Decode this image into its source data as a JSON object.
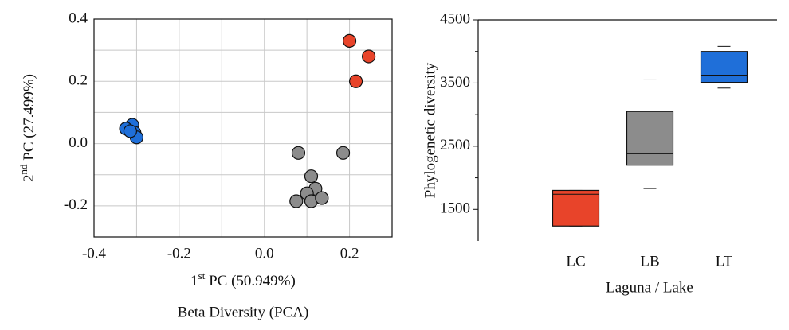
{
  "chart_data": [
    {
      "type": "scatter",
      "title": "Beta Diversity (PCA)",
      "xlabel": {
        "base": "1",
        "sup": "st",
        "rest": " PC (50.949%)"
      },
      "ylabel": {
        "base": "2",
        "sup": "nd",
        "rest": " PC (27.499%)"
      },
      "xlim": [
        -0.4,
        0.3
      ],
      "ylim": [
        -0.3,
        0.4
      ],
      "xticks": [
        -0.4,
        -0.2,
        {
          "value": 0,
          "label": "0.0"
        },
        0.2
      ],
      "yticks": [
        -0.2,
        {
          "value": 0,
          "label": "0.0"
        },
        0.2,
        0.4
      ],
      "xminor": [
        -0.3,
        -0.1,
        0.1
      ],
      "yminor": [
        -0.1,
        0.1,
        0.3
      ],
      "grid": true,
      "series": [
        {
          "color": "#e8442a",
          "x": [
            0.2,
            0.245,
            0.215
          ],
          "y": [
            0.33,
            0.28,
            0.2
          ]
        },
        {
          "color": "#1f6fd9",
          "x": [
            -0.31,
            -0.305,
            -0.3,
            -0.325,
            -0.315
          ],
          "y": [
            0.06,
            0.035,
            0.02,
            0.048,
            0.04
          ]
        },
        {
          "color": "#8c8c8c",
          "x": [
            0.08,
            0.185,
            0.11,
            0.12,
            0.1,
            0.11,
            0.075,
            0.135
          ],
          "y": [
            -0.03,
            -0.03,
            -0.105,
            -0.145,
            -0.16,
            -0.185,
            -0.185,
            -0.175
          ]
        }
      ]
    },
    {
      "type": "box",
      "xlabel": "Laguna / Lake",
      "ylabel": "Phylogenetic diversity",
      "ylim": [
        1000,
        4500
      ],
      "yticks": [
        1500,
        2500,
        3500,
        4500
      ],
      "yminor": [
        2000,
        3000,
        4000
      ],
      "categories": [
        "LC",
        "LB",
        "LT"
      ],
      "boxes": [
        {
          "min": 1236,
          "q1": 1236,
          "median": 1740,
          "q3": 1800,
          "max": 1800,
          "color": "#e8442a"
        },
        {
          "min": 1830,
          "q1": 2200,
          "median": 2380,
          "q3": 3050,
          "max": 3550,
          "color": "#8c8c8c"
        },
        {
          "min": 3420,
          "q1": 3510,
          "median": 3625,
          "q3": 4000,
          "max": 4080,
          "color": "#1f6fd9"
        }
      ]
    }
  ]
}
